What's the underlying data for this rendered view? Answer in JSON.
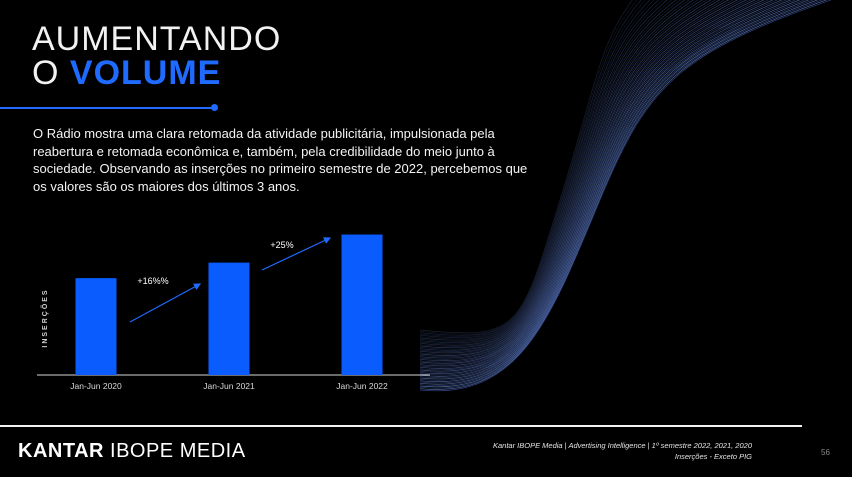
{
  "slide": {
    "title_line1": "AUMENTANDO",
    "title_line2_prefix": "O",
    "title_line2_highlight": "VOLUME",
    "intro_text": "O Rádio mostra uma clara retomada da atividade publicitária, impulsionada pela reabertura e retomada econômica e, também, pela credibilidade do meio junto à sociedade. Observando as inserções no primeiro semestre de 2022, percebemos que os valores são os maiores dos últimos 3 anos.",
    "logo_bold": "KANTAR",
    "logo_rest": "IBOPE MEDIA",
    "source_line1": "Kantar IBOPE Media | Advertising Intelligence | 1º semestre 2022, 2021, 2020",
    "source_line2": "Inserções - Exceto PIG",
    "page_number": "56"
  },
  "colors": {
    "accent": "#1f6bff",
    "bar": "#0a5cff",
    "background": "#000000",
    "text": "#ffffff"
  },
  "chart_data": {
    "type": "bar",
    "categories": [
      "Jan-Jun 2020",
      "Jan-Jun 2021",
      "Jan-Jun 2022"
    ],
    "values": [
      100,
      116,
      145
    ],
    "ylabel": "INSERÇÕES",
    "ylim": [
      0,
      160
    ],
    "grid": false,
    "legend": "none",
    "annotations": [
      {
        "text": "+16%%",
        "from": "Jan-Jun 2020",
        "to": "Jan-Jun 2021"
      },
      {
        "text": "+25%",
        "from": "Jan-Jun 2021",
        "to": "Jan-Jun 2022"
      }
    ]
  }
}
